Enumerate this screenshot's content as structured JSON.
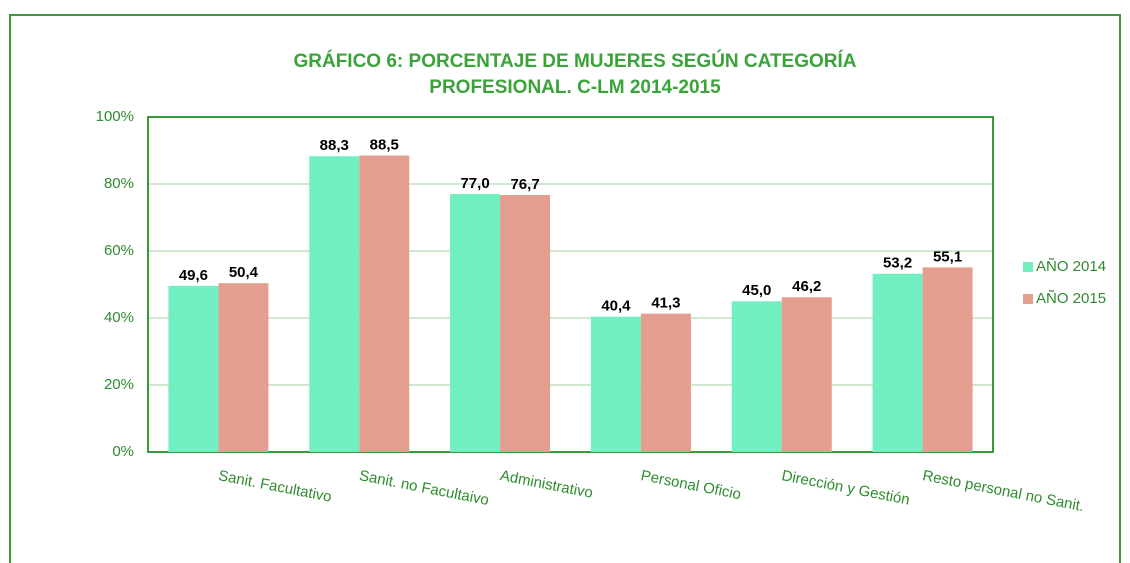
{
  "chart_data": {
    "type": "bar",
    "title": [
      "GRÁFICO 6: PORCENTAJE DE MUJERES SEGÚN CATEGORÍA",
      "PROFESIONAL. C-LM 2014-2015"
    ],
    "categories": [
      "Sanit. Facultativo",
      "Sanit. no Facultaivo",
      "Administrativo",
      "Personal Oficio",
      "Dirección y Gestión",
      "Resto personal no Sanit."
    ],
    "series": [
      {
        "name": "AÑO 2014",
        "color": "#72efc0",
        "values": [
          49.6,
          88.3,
          77.0,
          40.4,
          45.0,
          53.2
        ],
        "value_labels": [
          "49,6",
          "88,3",
          "77,0",
          "40,4",
          "45,0",
          "53,2"
        ]
      },
      {
        "name": "AÑO 2015",
        "color": "#e39e8f",
        "values": [
          50.4,
          88.5,
          76.7,
          41.3,
          46.2,
          55.1
        ],
        "value_labels": [
          "50,4",
          "88,5",
          "76,7",
          "41,3",
          "46,2",
          "55,1"
        ]
      }
    ],
    "ylim": [
      0,
      100
    ],
    "yticks": [
      {
        "value": 0,
        "label": "0%"
      },
      {
        "value": 20,
        "label": "20%"
      },
      {
        "value": 40,
        "label": "40%"
      },
      {
        "value": 60,
        "label": "60%"
      },
      {
        "value": 80,
        "label": "80%"
      },
      {
        "value": 100,
        "label": "100%"
      }
    ],
    "grid": true,
    "legend": "right"
  }
}
